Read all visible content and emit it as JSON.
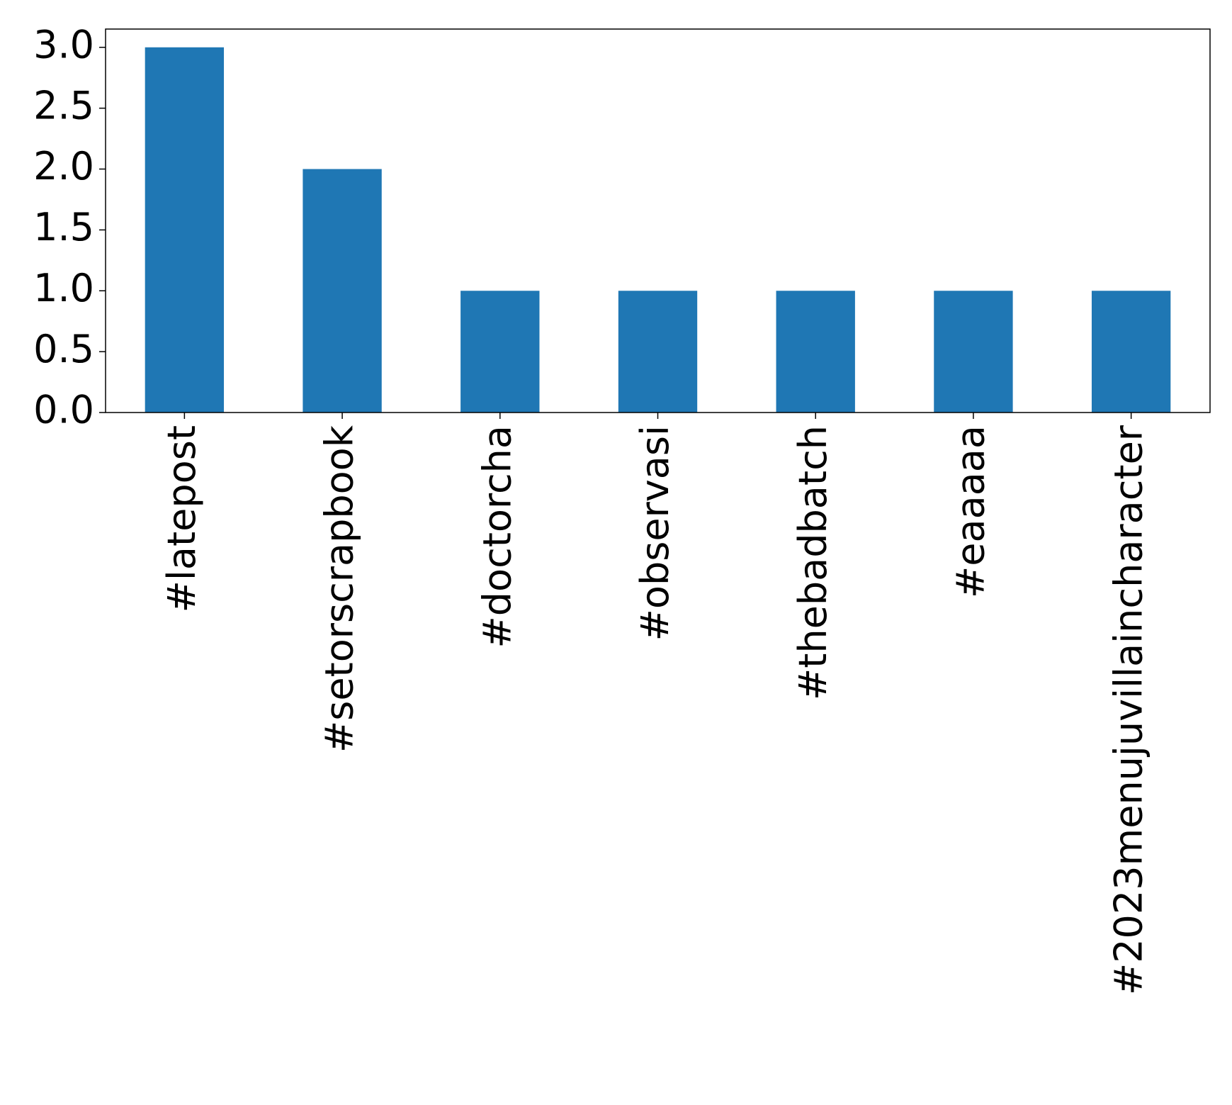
{
  "chart_data": {
    "type": "bar",
    "categories": [
      "#latepost",
      "#setorscrapbook",
      "#doctorcha",
      "#observasi",
      "#thebadbatch",
      "#eaaaaa",
      "#2023menujuvillaincharacter"
    ],
    "values": [
      3,
      2,
      1,
      1,
      1,
      1,
      1
    ],
    "color": "#1f77b4",
    "ylim": [
      0,
      3.15
    ],
    "yticks": [
      {
        "value": 0,
        "label": "0.0"
      },
      {
        "value": 0.5,
        "label": "0.5"
      },
      {
        "value": 1,
        "label": "1.0"
      },
      {
        "value": 1.5,
        "label": "1.5"
      },
      {
        "value": 2,
        "label": "2.0"
      },
      {
        "value": 2.5,
        "label": "2.5"
      },
      {
        "value": 3,
        "label": "3.0"
      }
    ],
    "grid": false
  }
}
